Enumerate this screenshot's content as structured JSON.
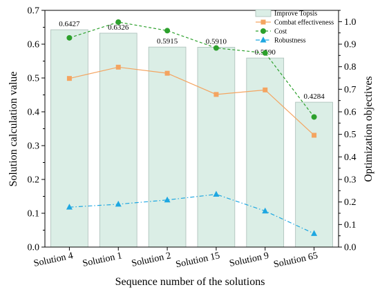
{
  "chart_data": {
    "type": "bar",
    "categories": [
      "Solution 4",
      "Solution 1",
      "Solution 2",
      "Solution 15",
      "Solution 9",
      "Solution 65"
    ],
    "xlabel": "Sequence number of the solutions",
    "ylabel_left": "Solution calculation value",
    "ylabel_right": "Optimization objectives",
    "ylim_left": [
      0,
      0.7
    ],
    "ylim_right": [
      0,
      1.05
    ],
    "yticks_left": [
      "0.0",
      "0.1",
      "0.2",
      "0.3",
      "0.4",
      "0.5",
      "0.6",
      "0.7"
    ],
    "yticks_right": [
      "0.0",
      "0.1",
      "0.2",
      "0.3",
      "0.4",
      "0.5",
      "0.6",
      "0.7",
      "0.8",
      "0.9",
      "1.0"
    ],
    "grid": false,
    "legend_position": "top-right",
    "bars": {
      "name": "Improve Topsis",
      "axis": "left",
      "values": [
        0.6427,
        0.6326,
        0.5915,
        0.591,
        0.559,
        0.4284
      ],
      "labels": [
        "0.6427",
        "0.6326",
        "0.5915",
        "0.5910",
        "0.5590",
        "0.4284"
      ],
      "color": "#dbeee6",
      "edge_color": "#a9bdb6"
    },
    "series": [
      {
        "name": "Combat effectiveness",
        "axis": "right",
        "style": "solid",
        "marker": "square",
        "color": "#f4a460",
        "values": [
          0.748,
          0.798,
          0.771,
          0.677,
          0.697,
          0.496
        ]
      },
      {
        "name": "Cost",
        "axis": "right",
        "style": "dashed",
        "marker": "circle",
        "color": "#2ca02c",
        "values": [
          0.928,
          0.998,
          0.96,
          0.883,
          0.861,
          0.577
        ]
      },
      {
        "name": "Robustness",
        "axis": "right",
        "style": "dashdot",
        "marker": "triangle",
        "color": "#1ea7e1",
        "values": [
          0.177,
          0.19,
          0.209,
          0.234,
          0.16,
          0.06
        ]
      }
    ]
  }
}
